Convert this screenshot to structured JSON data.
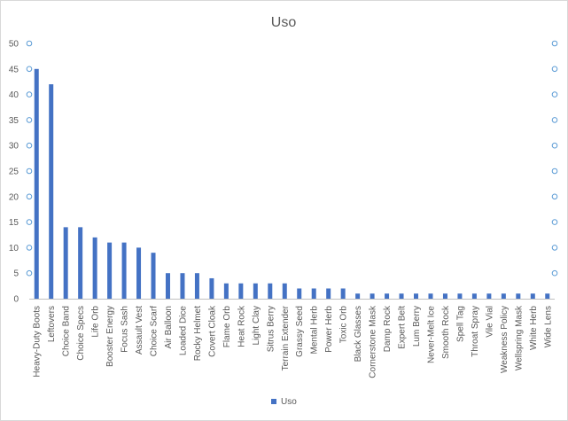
{
  "chart_data": {
    "type": "bar",
    "title": "Uso",
    "xlabel": "",
    "ylabel": "",
    "ylim": [
      0,
      50
    ],
    "yticks": [
      0,
      5,
      10,
      15,
      20,
      25,
      30,
      35,
      40,
      45,
      50
    ],
    "grid": false,
    "legend": "bottom",
    "colors": {
      "bar": "#4472c4",
      "axis_text": "#595959",
      "axis_line": "#bfbfbf",
      "marker_fill": "#ffffff",
      "marker_stroke": "#5b9bd5"
    },
    "categories": [
      "Heavy-Duty Boots",
      "Leftovers",
      "Choice Band",
      "Choice Specs",
      "Life Orb",
      "Booster Energy",
      "Focus Sash",
      "Assault Vest",
      "Choice Scarf",
      "Air Balloon",
      "Loaded Dice",
      "Rocky Helmet",
      "Covert Cloak",
      "Flame Orb",
      "Heat Rock",
      "Light Clay",
      "Sitrus Berry",
      "Terrain Extender",
      "Grassy Seed",
      "Mental Herb",
      "Power Herb",
      "Toxic Orb",
      "Black Glasses",
      "Cornerstone Mask",
      "Damp Rock",
      "Expert Belt",
      "Lum Berry",
      "Never-Melt Ice",
      "Smooth Rock",
      "Spell Tag",
      "Throat Spray",
      "Vile Vial",
      "Weakness Policy",
      "Wellspring Mask",
      "White Herb",
      "Wide Lens"
    ],
    "series": [
      {
        "name": "Uso",
        "values": [
          45,
          42,
          14,
          14,
          12,
          11,
          11,
          10,
          9,
          5,
          5,
          5,
          4,
          3,
          3,
          3,
          3,
          3,
          2,
          2,
          2,
          2,
          1,
          1,
          1,
          1,
          1,
          1,
          1,
          1,
          1,
          1,
          1,
          1,
          1,
          1
        ]
      }
    ]
  }
}
